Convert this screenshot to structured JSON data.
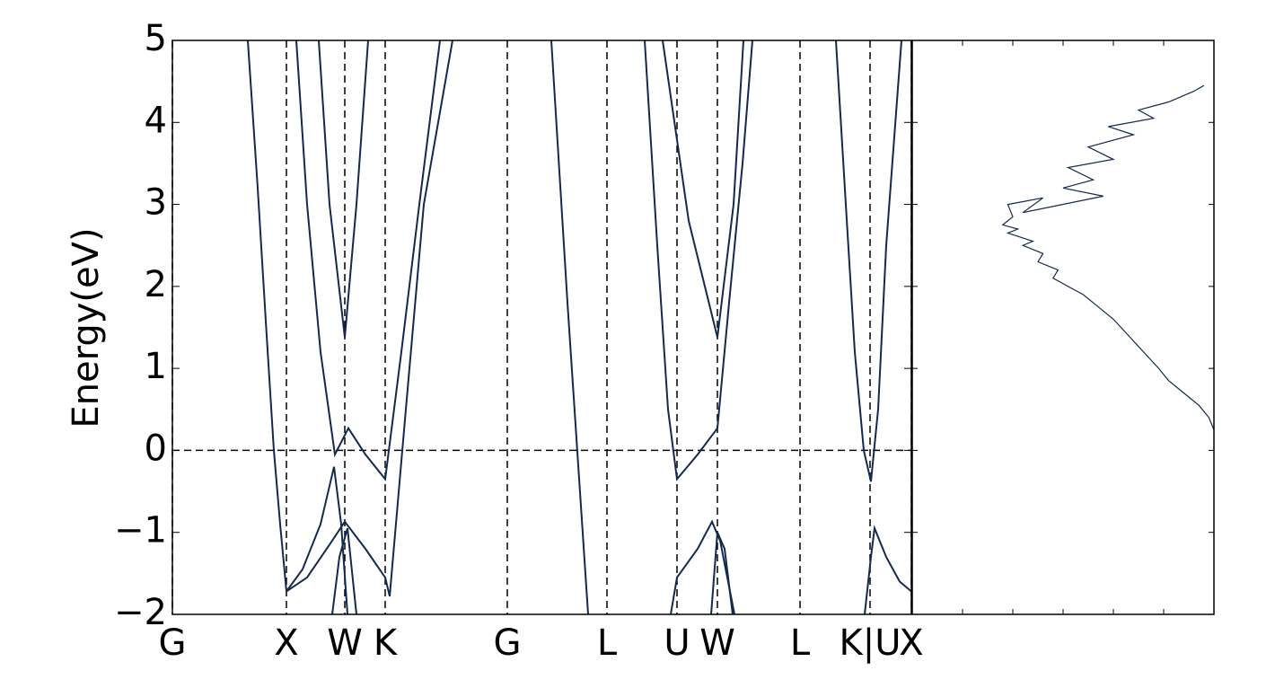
{
  "chart_data": [
    {
      "type": "line",
      "ylabel": "Energy(eV)",
      "color": "#13294f",
      "xlim": [
        0,
        8.23
      ],
      "ylim": [
        -2,
        5
      ],
      "xticks": [
        {
          "value": 0,
          "label": "G"
        },
        {
          "value": 1.27,
          "label": "X"
        },
        {
          "value": 1.92,
          "label": "W"
        },
        {
          "value": 2.37,
          "label": "K"
        },
        {
          "value": 3.73,
          "label": "G"
        },
        {
          "value": 4.84,
          "label": "L"
        },
        {
          "value": 5.62,
          "label": "U"
        },
        {
          "value": 6.07,
          "label": "W"
        },
        {
          "value": 6.99,
          "label": "L"
        },
        {
          "value": 7.77,
          "label": "K|U"
        },
        {
          "value": 8.23,
          "label": "X"
        }
      ],
      "yticks": [
        {
          "value": -2,
          "label": "−2"
        },
        {
          "value": -1,
          "label": "−1"
        },
        0,
        1,
        2,
        3,
        4,
        5
      ],
      "fermi_level": 0,
      "series": [
        {
          "x": [
            0.84,
            0.95,
            1.05,
            1.13,
            1.2,
            1.27
          ],
          "values": [
            5,
            3.2,
            1.4,
            0,
            -0.9,
            -1.72
          ]
        },
        {
          "x": [
            1.27,
            1.45,
            1.65,
            1.8,
            1.88,
            1.95
          ],
          "values": [
            -1.72,
            -1.45,
            -0.9,
            -0.2,
            -0.9,
            -2
          ]
        },
        {
          "x": [
            1.27,
            1.5,
            1.75,
            1.92,
            2.15,
            2.37,
            2.42,
            2.6,
            2.8,
            3.12
          ],
          "values": [
            -1.72,
            -1.55,
            -1.15,
            -0.87,
            -1.2,
            -1.55,
            -1.78,
            0.5,
            3,
            5
          ]
        },
        {
          "x": [
            1.78,
            1.86,
            1.95,
            2.05
          ],
          "values": [
            -2,
            -1.3,
            -0.95,
            -2
          ]
        },
        {
          "x": [
            1.38,
            1.5,
            1.65,
            1.81,
            1.96,
            2.15,
            2.37,
            2.55,
            2.75,
            2.98
          ],
          "values": [
            5,
            3,
            1.2,
            -0.05,
            0.27,
            -0.05,
            -0.35,
            1.2,
            3,
            5
          ]
        },
        {
          "x": [
            1.63,
            1.75,
            1.92,
            2.05,
            2.18
          ],
          "values": [
            5,
            3,
            1.38,
            3,
            5
          ]
        },
        {
          "x": [
            4.22,
            4.4,
            4.63
          ],
          "values": [
            5,
            1.8,
            -2
          ]
        },
        {
          "x": [
            5.26,
            5.4,
            5.52,
            5.62,
            5.85,
            6.07,
            6.2,
            6.35,
            6.46
          ],
          "values": [
            5,
            2.5,
            0.5,
            -0.35,
            -0.05,
            0.27,
            1.8,
            3.5,
            5
          ]
        },
        {
          "x": [
            5.46,
            5.75,
            6.07,
            6.25,
            6.36
          ],
          "values": [
            5,
            2.8,
            1.38,
            3,
            5
          ]
        },
        {
          "x": [
            5.55,
            5.62,
            5.85,
            6.01,
            6.1,
            6.26
          ],
          "values": [
            -2,
            -1.55,
            -1.2,
            -0.87,
            -1.1,
            -2
          ]
        },
        {
          "x": [
            6.0,
            6.07,
            6.15,
            6.24
          ],
          "values": [
            -2,
            -1.0,
            -1.2,
            -2
          ]
        },
        {
          "x": [
            7.39,
            7.5,
            7.6,
            7.7,
            7.78,
            7.86,
            7.95,
            8.12
          ],
          "values": [
            5,
            3,
            1.2,
            0,
            -0.38,
            0.5,
            2.5,
            5
          ]
        },
        {
          "x": [
            7.71,
            7.78,
            7.82,
            7.95,
            8.1,
            8.23
          ],
          "values": [
            -2,
            -1.3,
            -0.95,
            -1.3,
            -1.6,
            -1.72
          ]
        }
      ]
    },
    {
      "type": "dos",
      "color": "#13294f",
      "xlim": [
        6,
        0
      ],
      "ylim": [
        -2,
        5
      ],
      "xticks": [
        5,
        4,
        3,
        2,
        1
      ],
      "yticks": [
        -2,
        -1,
        0,
        1,
        2,
        3,
        4,
        5
      ],
      "series": [
        {
          "x": [
            0,
            0.1,
            0.3,
            0.6,
            0.9,
            1.1,
            1.4,
            1.7,
            2.0,
            2.3,
            2.6,
            2.9,
            3.2,
            3.1,
            3.5,
            3.4,
            3.8,
            3.6,
            4.1,
            3.9,
            4.2,
            4.0,
            4.1,
            3.4,
            3.8,
            2.2,
            3.0,
            2.4,
            2.9,
            2.0,
            2.5,
            1.6,
            2.1,
            1.2,
            1.5,
            0.9,
            0.4,
            0.2
          ],
          "values": [
            0.25,
            0.4,
            0.55,
            0.7,
            0.85,
            1.0,
            1.2,
            1.4,
            1.6,
            1.75,
            1.9,
            2.0,
            2.1,
            2.2,
            2.3,
            2.4,
            2.5,
            2.55,
            2.65,
            2.7,
            2.75,
            2.85,
            3.0,
            3.08,
            2.9,
            3.1,
            3.2,
            3.3,
            3.45,
            3.55,
            3.7,
            3.85,
            3.95,
            4.05,
            4.15,
            4.25,
            4.38,
            4.45
          ]
        }
      ]
    }
  ]
}
